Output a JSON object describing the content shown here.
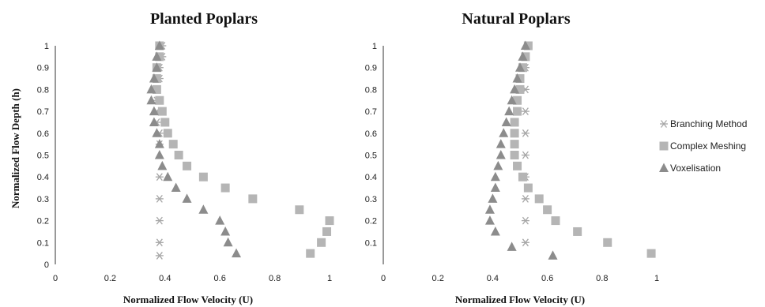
{
  "chart_data": [
    {
      "type": "scatter",
      "title": "Planted Poplars",
      "xlabel": "Normalized Flow Velocity (U)",
      "ylabel": "Normalized Flow Depth (h)",
      "xlim": [
        0,
        1.2
      ],
      "ylim": [
        0,
        1
      ],
      "xticks": [
        "0",
        "0.2",
        "0.4",
        "0.6",
        "0.8",
        "1"
      ],
      "yticks": [
        "0",
        "0.1",
        "0.2",
        "0.3",
        "0.4",
        "0.5",
        "0.6",
        "0.7",
        "0.8",
        "0.9",
        "1"
      ],
      "series": [
        {
          "name": "Branching Method",
          "marker": "star",
          "color": "#a6a6a6",
          "points": [
            [
              0.39,
              1.0
            ],
            [
              0.39,
              0.95
            ],
            [
              0.38,
              0.9
            ],
            [
              0.38,
              0.85
            ],
            [
              0.37,
              0.8
            ],
            [
              0.37,
              0.75
            ],
            [
              0.37,
              0.7
            ],
            [
              0.37,
              0.65
            ],
            [
              0.38,
              0.6
            ],
            [
              0.38,
              0.55
            ],
            [
              0.38,
              0.4
            ],
            [
              0.38,
              0.3
            ],
            [
              0.38,
              0.2
            ],
            [
              0.38,
              0.1
            ],
            [
              0.38,
              0.04
            ]
          ]
        },
        {
          "name": "Complex Meshing",
          "marker": "square",
          "color": "#b5b5b5",
          "points": [
            [
              0.38,
              1.0
            ],
            [
              0.38,
              0.95
            ],
            [
              0.37,
              0.9
            ],
            [
              0.37,
              0.85
            ],
            [
              0.37,
              0.8
            ],
            [
              0.38,
              0.75
            ],
            [
              0.39,
              0.7
            ],
            [
              0.4,
              0.65
            ],
            [
              0.41,
              0.6
            ],
            [
              0.43,
              0.55
            ],
            [
              0.45,
              0.5
            ],
            [
              0.48,
              0.45
            ],
            [
              0.54,
              0.4
            ],
            [
              0.62,
              0.35
            ],
            [
              0.72,
              0.3
            ],
            [
              0.89,
              0.25
            ],
            [
              1.0,
              0.2
            ],
            [
              0.99,
              0.15
            ],
            [
              0.97,
              0.1
            ],
            [
              0.93,
              0.05
            ]
          ]
        },
        {
          "name": "Voxelisation",
          "marker": "triangle",
          "color": "#8c8c8c",
          "points": [
            [
              0.38,
              1.0
            ],
            [
              0.37,
              0.95
            ],
            [
              0.37,
              0.9
            ],
            [
              0.36,
              0.85
            ],
            [
              0.35,
              0.8
            ],
            [
              0.35,
              0.75
            ],
            [
              0.36,
              0.7
            ],
            [
              0.36,
              0.65
            ],
            [
              0.37,
              0.6
            ],
            [
              0.38,
              0.55
            ],
            [
              0.38,
              0.5
            ],
            [
              0.39,
              0.45
            ],
            [
              0.41,
              0.4
            ],
            [
              0.44,
              0.35
            ],
            [
              0.48,
              0.3
            ],
            [
              0.54,
              0.25
            ],
            [
              0.6,
              0.2
            ],
            [
              0.62,
              0.15
            ],
            [
              0.63,
              0.1
            ],
            [
              0.66,
              0.05
            ]
          ]
        }
      ]
    },
    {
      "type": "scatter",
      "title": "Natural Poplars",
      "xlabel": "Normalized Flow Velocity (U)",
      "ylabel": "",
      "xlim": [
        0,
        1
      ],
      "ylim": [
        0,
        1
      ],
      "xticks": [
        "0",
        "0.2",
        "0.4",
        "0.6",
        "0.8",
        "1"
      ],
      "yticks": [
        "0.1",
        "0.2",
        "0.3",
        "0.4",
        "0.5",
        "0.6",
        "0.7",
        "0.8",
        "0.9",
        "1"
      ],
      "series": [
        {
          "name": "Branching Method",
          "marker": "star",
          "color": "#a6a6a6",
          "points": [
            [
              0.53,
              1.0
            ],
            [
              0.52,
              0.9
            ],
            [
              0.52,
              0.8
            ],
            [
              0.52,
              0.7
            ],
            [
              0.52,
              0.6
            ],
            [
              0.52,
              0.5
            ],
            [
              0.52,
              0.4
            ],
            [
              0.52,
              0.3
            ],
            [
              0.52,
              0.2
            ],
            [
              0.52,
              0.1
            ]
          ]
        },
        {
          "name": "Complex Meshing",
          "marker": "square",
          "color": "#b5b5b5",
          "points": [
            [
              0.53,
              1.0
            ],
            [
              0.52,
              0.95
            ],
            [
              0.51,
              0.9
            ],
            [
              0.5,
              0.85
            ],
            [
              0.5,
              0.8
            ],
            [
              0.49,
              0.75
            ],
            [
              0.49,
              0.7
            ],
            [
              0.48,
              0.65
            ],
            [
              0.48,
              0.6
            ],
            [
              0.48,
              0.55
            ],
            [
              0.48,
              0.5
            ],
            [
              0.49,
              0.45
            ],
            [
              0.51,
              0.4
            ],
            [
              0.53,
              0.35
            ],
            [
              0.57,
              0.3
            ],
            [
              0.6,
              0.25
            ],
            [
              0.63,
              0.2
            ],
            [
              0.71,
              0.15
            ],
            [
              0.82,
              0.1
            ],
            [
              0.98,
              0.05
            ]
          ]
        },
        {
          "name": "Voxelisation",
          "marker": "triangle",
          "color": "#8c8c8c",
          "points": [
            [
              0.52,
              1.0
            ],
            [
              0.51,
              0.95
            ],
            [
              0.5,
              0.9
            ],
            [
              0.49,
              0.85
            ],
            [
              0.48,
              0.8
            ],
            [
              0.47,
              0.75
            ],
            [
              0.46,
              0.7
            ],
            [
              0.45,
              0.65
            ],
            [
              0.44,
              0.6
            ],
            [
              0.43,
              0.55
            ],
            [
              0.43,
              0.5
            ],
            [
              0.42,
              0.45
            ],
            [
              0.41,
              0.4
            ],
            [
              0.41,
              0.35
            ],
            [
              0.4,
              0.3
            ],
            [
              0.39,
              0.25
            ],
            [
              0.39,
              0.2
            ],
            [
              0.41,
              0.15
            ],
            [
              0.47,
              0.08
            ],
            [
              0.62,
              0.04
            ]
          ]
        }
      ]
    }
  ],
  "legend": {
    "position": "right",
    "items": [
      {
        "label": "Branching Method",
        "marker": "star",
        "color": "#a6a6a6"
      },
      {
        "label": "Complex Meshing",
        "marker": "square",
        "color": "#b5b5b5"
      },
      {
        "label": "Voxelisation",
        "marker": "triangle",
        "color": "#8c8c8c"
      }
    ]
  }
}
